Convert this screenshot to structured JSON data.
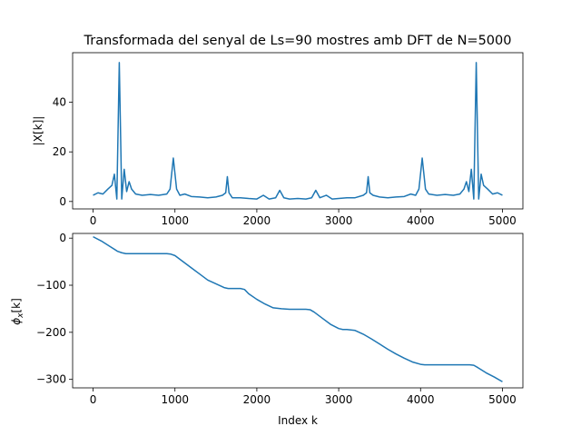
{
  "chart_data": [
    {
      "type": "line",
      "title": "Transformada del senyal de Ls=90 mostres amb DFT de N=5000",
      "xlabel": "",
      "ylabel": "|X[k]|",
      "xlim": [
        -250,
        5250
      ],
      "ylim": [
        -3,
        60
      ],
      "xticks": [
        0,
        1000,
        2000,
        3000,
        4000,
        5000
      ],
      "yticks": [
        0,
        20,
        40
      ],
      "grid": false,
      "series_color": "#1f77b4",
      "peaks": [
        {
          "k": 320,
          "value": 56
        },
        {
          "k": 980,
          "value": 17.5
        },
        {
          "k": 1640,
          "value": 10
        },
        {
          "k": 2280,
          "value": 4.5
        },
        {
          "k": 2720,
          "value": 4.5
        },
        {
          "k": 3360,
          "value": 10
        },
        {
          "k": 4020,
          "value": 17.5
        },
        {
          "k": 4680,
          "value": 56
        }
      ],
      "x": [
        0,
        60,
        120,
        180,
        230,
        260,
        290,
        320,
        350,
        380,
        410,
        440,
        470,
        520,
        600,
        700,
        800,
        900,
        940,
        980,
        1020,
        1060,
        1120,
        1200,
        1300,
        1400,
        1500,
        1580,
        1620,
        1640,
        1660,
        1700,
        1800,
        1900,
        2000,
        2080,
        2150,
        2230,
        2280,
        2330,
        2400,
        2500,
        2600,
        2670,
        2720,
        2770,
        2850,
        2920,
        3000,
        3100,
        3200,
        3300,
        3340,
        3360,
        3380,
        3420,
        3500,
        3600,
        3700,
        3800,
        3880,
        3940,
        3980,
        4020,
        4060,
        4100,
        4200,
        4300,
        4400,
        4480,
        4530,
        4560,
        4590,
        4620,
        4650,
        4680,
        4710,
        4740,
        4770,
        4820,
        4880,
        4940,
        5000
      ],
      "y": [
        2.5,
        3.5,
        3,
        5,
        6.5,
        11,
        1,
        56,
        1,
        13,
        4,
        8,
        5,
        3,
        2.5,
        2.8,
        2.5,
        3,
        5,
        17.5,
        5,
        2.5,
        3,
        2,
        1.8,
        1.5,
        1.8,
        2.5,
        3.5,
        10,
        3.5,
        1.5,
        1.5,
        1.2,
        1,
        2.5,
        1,
        1.5,
        4.5,
        1.5,
        1,
        1.2,
        1,
        1.5,
        4.5,
        1.5,
        2.5,
        1,
        1.2,
        1.5,
        1.5,
        2.5,
        3.5,
        10,
        3.5,
        2.5,
        1.8,
        1.5,
        1.8,
        2,
        3,
        2.5,
        5,
        17.5,
        5,
        3,
        2.5,
        2.8,
        2.5,
        3,
        5,
        8,
        4,
        13,
        1,
        56,
        1,
        11,
        6.5,
        5,
        3,
        3.5,
        2.5
      ]
    },
    {
      "type": "line",
      "title": "",
      "xlabel": "Index k",
      "ylabel": "ϕx[k]",
      "xlim": [
        -250,
        5250
      ],
      "ylim": [
        -318,
        10
      ],
      "xticks": [
        0,
        1000,
        2000,
        3000,
        4000,
        5000
      ],
      "yticks": [
        0,
        -100,
        -200,
        -300
      ],
      "grid": false,
      "series_color": "#1f77b4",
      "x": [
        0,
        100,
        200,
        300,
        350,
        400,
        500,
        600,
        700,
        800,
        900,
        950,
        1000,
        1100,
        1200,
        1300,
        1400,
        1500,
        1600,
        1650,
        1700,
        1800,
        1850,
        1900,
        2000,
        2100,
        2200,
        2300,
        2400,
        2500,
        2600,
        2650,
        2700,
        2800,
        2900,
        3000,
        3050,
        3100,
        3200,
        3300,
        3400,
        3500,
        3600,
        3700,
        3800,
        3900,
        4000,
        4050,
        4100,
        4200,
        4300,
        4400,
        4500,
        4600,
        4650,
        4700,
        4800,
        4900,
        5000
      ],
      "y": [
        3,
        -6,
        -17,
        -28,
        -31,
        -33,
        -33,
        -33,
        -33,
        -33,
        -33,
        -34,
        -37,
        -50,
        -63,
        -76,
        -89,
        -97,
        -105,
        -107,
        -107,
        -107,
        -109,
        -118,
        -130,
        -140,
        -148,
        -150,
        -151,
        -151,
        -151,
        -152,
        -157,
        -170,
        -183,
        -192,
        -194,
        -194,
        -196,
        -204,
        -214,
        -225,
        -236,
        -246,
        -255,
        -263,
        -268,
        -269,
        -269,
        -269,
        -269,
        -269,
        -269,
        -269,
        -270,
        -275,
        -286,
        -295,
        -305
      ]
    }
  ]
}
